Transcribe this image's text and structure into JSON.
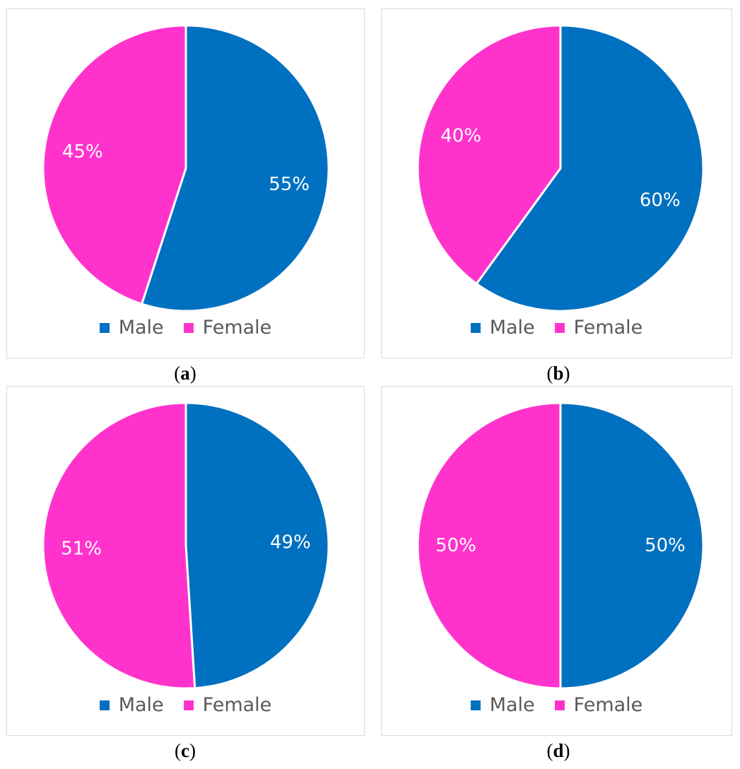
{
  "legend": {
    "male": "Male",
    "female": "Female"
  },
  "colors": {
    "male": "#0070C0",
    "female": "#FF33CC",
    "slice_border": "#ffffff"
  },
  "chart_data": [
    {
      "type": "pie",
      "panel": "a",
      "caption": {
        "open": "(",
        "letter": "a",
        "close": ")"
      },
      "categories": [
        "Male",
        "Female"
      ],
      "values": [
        55,
        45
      ],
      "labels": [
        "55%",
        "45%"
      ]
    },
    {
      "type": "pie",
      "panel": "b",
      "caption": {
        "open": "(",
        "letter": "b",
        "close": ")"
      },
      "categories": [
        "Male",
        "Female"
      ],
      "values": [
        60,
        40
      ],
      "labels": [
        "60%",
        "40%"
      ]
    },
    {
      "type": "pie",
      "panel": "c",
      "caption": {
        "open": "(",
        "letter": "c",
        "close": ")"
      },
      "categories": [
        "Male",
        "Female"
      ],
      "values": [
        49,
        51
      ],
      "labels": [
        "49%",
        "51%"
      ]
    },
    {
      "type": "pie",
      "panel": "d",
      "caption": {
        "open": "(",
        "letter": "d",
        "close": ")"
      },
      "categories": [
        "Male",
        "Female"
      ],
      "values": [
        50,
        50
      ],
      "labels": [
        "50%",
        "50%"
      ]
    }
  ]
}
